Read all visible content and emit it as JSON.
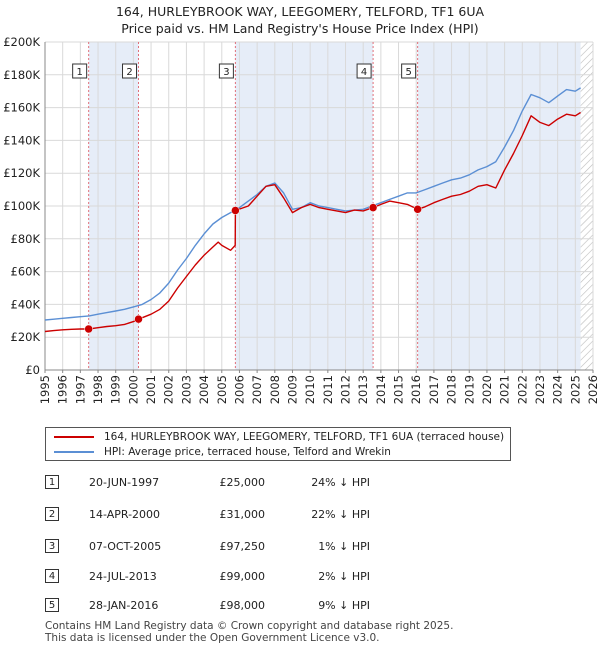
{
  "header": {
    "title_line1": "164, HURLEYBROOK WAY, LEEGOMERY, TELFORD, TF1 6UA",
    "title_line2": "Price paid vs. HM Land Registry's House Price Index (HPI)"
  },
  "colors": {
    "property": "#cc0000",
    "hpi": "#5b8fd4",
    "shade": "#e6edf8",
    "grid": "#d9d9d9",
    "marker_line": "#e0707a"
  },
  "chart_data": {
    "type": "line",
    "title": "164, HURLEYBROOK WAY, LEEGOMERY, TELFORD, TF1 6UA",
    "subtitle": "Price paid vs. HM Land Registry's House Price Index (HPI)",
    "xlabel": "",
    "ylabel": "",
    "xlim": [
      1995,
      2026
    ],
    "ylim": [
      0,
      200000
    ],
    "yticks": [
      0,
      20000,
      40000,
      60000,
      80000,
      100000,
      120000,
      140000,
      160000,
      180000,
      200000
    ],
    "ytick_labels": [
      "£0",
      "£20K",
      "£40K",
      "£60K",
      "£80K",
      "£100K",
      "£120K",
      "£140K",
      "£160K",
      "£180K",
      "£200K"
    ],
    "xticks": [
      1995,
      1996,
      1997,
      1998,
      1999,
      2000,
      2001,
      2002,
      2003,
      2004,
      2005,
      2006,
      2007,
      2008,
      2009,
      2010,
      2011,
      2012,
      2013,
      2014,
      2015,
      2016,
      2017,
      2018,
      2019,
      2020,
      2021,
      2022,
      2023,
      2024,
      2025,
      2026
    ],
    "xtick_labels": [
      "1995",
      "1996",
      "1997",
      "1998",
      "1999",
      "2000",
      "2001",
      "2002",
      "2003",
      "2004",
      "2005",
      "2006",
      "2007",
      "2008",
      "2009",
      "2010",
      "2011",
      "2012",
      "2013",
      "2014",
      "2015",
      "2016",
      "2017",
      "2018",
      "2019",
      "2020",
      "2021",
      "2022",
      "2023",
      "2024",
      "2025",
      "2026"
    ],
    "shaded_ranges": [
      [
        1997.47,
        2000.29
      ],
      [
        2005.77,
        2013.56
      ],
      [
        2016.08,
        2025.3
      ]
    ],
    "data_end_x": 2025.3,
    "series": [
      {
        "name": "164, HURLEYBROOK WAY, LEEGOMERY, TELFORD, TF1 6UA (terraced house)",
        "color": "#cc0000",
        "x": [
          1995.0,
          1995.5,
          1996.0,
          1996.5,
          1997.0,
          1997.47,
          1998.0,
          1998.5,
          1999.0,
          1999.5,
          2000.0,
          2000.29,
          2001.0,
          2001.5,
          2002.0,
          2002.5,
          2003.0,
          2003.5,
          2004.0,
          2004.5,
          2004.8,
          2005.0,
          2005.5,
          2005.76,
          2005.77,
          2006.5,
          2007.0,
          2007.5,
          2008.0,
          2008.5,
          2009.0,
          2009.5,
          2010.0,
          2010.5,
          2011.0,
          2011.5,
          2012.0,
          2012.5,
          2013.0,
          2013.56,
          2014.0,
          2014.5,
          2015.0,
          2015.5,
          2016.08,
          2016.5,
          2017.0,
          2017.5,
          2018.0,
          2018.5,
          2019.0,
          2019.5,
          2020.0,
          2020.5,
          2021.0,
          2021.5,
          2022.0,
          2022.5,
          2023.0,
          2023.5,
          2024.0,
          2024.5,
          2025.0,
          2025.3
        ],
        "values": [
          23500,
          24000,
          24500,
          24800,
          25000,
          25000,
          25800,
          26500,
          27000,
          27800,
          29500,
          31000,
          34000,
          37000,
          42000,
          50000,
          57000,
          64000,
          70000,
          75000,
          78000,
          76000,
          73000,
          76000,
          97250,
          100000,
          106000,
          112000,
          113000,
          105000,
          96000,
          99000,
          101000,
          99000,
          98000,
          97000,
          96000,
          97500,
          97000,
          99000,
          101000,
          103000,
          102000,
          101000,
          98000,
          99500,
          102000,
          104000,
          106000,
          107000,
          109000,
          112000,
          113000,
          111000,
          122000,
          132000,
          143000,
          155000,
          151000,
          149000,
          153000,
          156000,
          155000,
          157000
        ]
      },
      {
        "name": "HPI: Average price, terraced house, Telford and Wrekin",
        "color": "#5b8fd4",
        "x": [
          1995.0,
          1995.5,
          1996.0,
          1996.5,
          1997.0,
          1997.5,
          1998.0,
          1998.5,
          1999.0,
          1999.5,
          2000.0,
          2000.5,
          2001.0,
          2001.5,
          2002.0,
          2002.5,
          2003.0,
          2003.5,
          2004.0,
          2004.5,
          2005.0,
          2005.5,
          2006.0,
          2006.5,
          2007.0,
          2007.5,
          2008.0,
          2008.5,
          2009.0,
          2009.5,
          2010.0,
          2010.5,
          2011.0,
          2011.5,
          2012.0,
          2012.5,
          2013.0,
          2013.5,
          2014.0,
          2014.5,
          2015.0,
          2015.5,
          2016.0,
          2016.5,
          2017.0,
          2017.5,
          2018.0,
          2018.5,
          2019.0,
          2019.5,
          2020.0,
          2020.5,
          2021.0,
          2021.5,
          2022.0,
          2022.5,
          2023.0,
          2023.5,
          2024.0,
          2024.5,
          2025.0,
          2025.3
        ],
        "values": [
          30500,
          31000,
          31500,
          32000,
          32500,
          33000,
          34000,
          35000,
          36000,
          37000,
          38500,
          40000,
          43000,
          47000,
          53000,
          61000,
          68000,
          76000,
          83000,
          89000,
          93000,
          96000,
          99000,
          103000,
          107000,
          112000,
          114000,
          108000,
          98000,
          99000,
          102000,
          100000,
          99000,
          98000,
          97000,
          97500,
          98000,
          100000,
          102000,
          104000,
          106000,
          108000,
          108000,
          110000,
          112000,
          114000,
          116000,
          117000,
          119000,
          122000,
          124000,
          127000,
          136000,
          146000,
          158000,
          168000,
          166000,
          163000,
          167000,
          171000,
          170000,
          172000
        ]
      }
    ],
    "sales": [
      {
        "label": "1",
        "x": 1997.47,
        "value": 25000
      },
      {
        "label": "2",
        "x": 2000.29,
        "value": 31000
      },
      {
        "label": "3",
        "x": 2005.77,
        "value": 97250
      },
      {
        "label": "4",
        "x": 2013.56,
        "value": 99000
      },
      {
        "label": "5",
        "x": 2016.08,
        "value": 98000
      }
    ]
  },
  "legend": {
    "property_label": "164, HURLEYBROOK WAY, LEEGOMERY, TELFORD, TF1 6UA (terraced house)",
    "hpi_label": "HPI: Average price, terraced house, Telford and Wrekin"
  },
  "transactions": [
    {
      "num": "1",
      "date": "20-JUN-1997",
      "price": "£25,000",
      "hpi": "24% ↓ HPI"
    },
    {
      "num": "2",
      "date": "14-APR-2000",
      "price": "£31,000",
      "hpi": "22% ↓ HPI"
    },
    {
      "num": "3",
      "date": "07-OCT-2005",
      "price": "£97,250",
      "hpi": "1% ↓ HPI"
    },
    {
      "num": "4",
      "date": "24-JUL-2013",
      "price": "£99,000",
      "hpi": "2% ↓ HPI"
    },
    {
      "num": "5",
      "date": "28-JAN-2016",
      "price": "£98,000",
      "hpi": "9% ↓ HPI"
    }
  ],
  "footer": {
    "line1": "Contains HM Land Registry data © Crown copyright and database right 2025.",
    "line2": "This data is licensed under the Open Government Licence v3.0."
  }
}
